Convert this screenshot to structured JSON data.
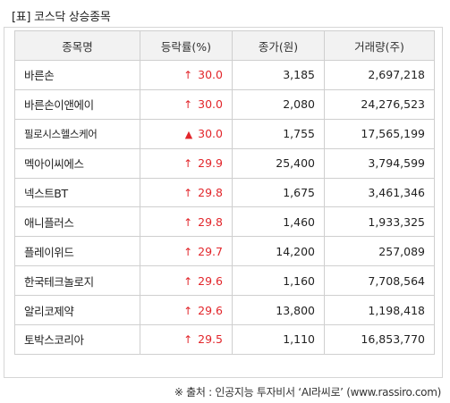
{
  "title": "[표] 코스닥 상승종목",
  "headers": [
    "종목명",
    "등락률(%)",
    "종가(원)",
    "거래량(주)"
  ],
  "rows": [
    {
      "name": "바른손",
      "arrow": "↑",
      "rate": "30.0",
      "price": "3,185",
      "volume": "2,697,218"
    },
    {
      "name": "바른손이앤에이",
      "arrow": "↑",
      "rate": "30.0",
      "price": "2,080",
      "volume": "24,276,523"
    },
    {
      "name": "필로시스헬스케어",
      "arrow": "▲",
      "rate": "30.0",
      "price": "1,755",
      "volume": "17,565,199"
    },
    {
      "name": "멕아이씨에스",
      "arrow": "↑",
      "rate": "29.9",
      "price": "25,400",
      "volume": "3,794,599"
    },
    {
      "name": "넥스트BT",
      "arrow": "↑",
      "rate": "29.8",
      "price": "1,675",
      "volume": "3,461,346"
    },
    {
      "name": "애니플러스",
      "arrow": "↑",
      "rate": "29.8",
      "price": "1,460",
      "volume": "1,933,325"
    },
    {
      "name": "플레이위드",
      "arrow": "↑",
      "rate": "29.7",
      "price": "14,200",
      "volume": "257,089"
    },
    {
      "name": "한국테크놀로지",
      "arrow": "↑",
      "rate": "29.6",
      "price": "1,160",
      "volume": "7,708,564"
    },
    {
      "name": "알리코제약",
      "arrow": "↑",
      "rate": "29.6",
      "price": "13,800",
      "volume": "1,198,418"
    },
    {
      "name": "토박스코리아",
      "arrow": "↑",
      "rate": "29.5",
      "price": "1,110",
      "volume": "16,853,770"
    }
  ],
  "source": "※ 출처 : 인공지능 투자비서 ‘AI라씨로’ (www.rassiro.com)",
  "colors": {
    "up": "#e2262b",
    "header_bg": "#f2f2f2",
    "border": "#cfcfcf"
  }
}
